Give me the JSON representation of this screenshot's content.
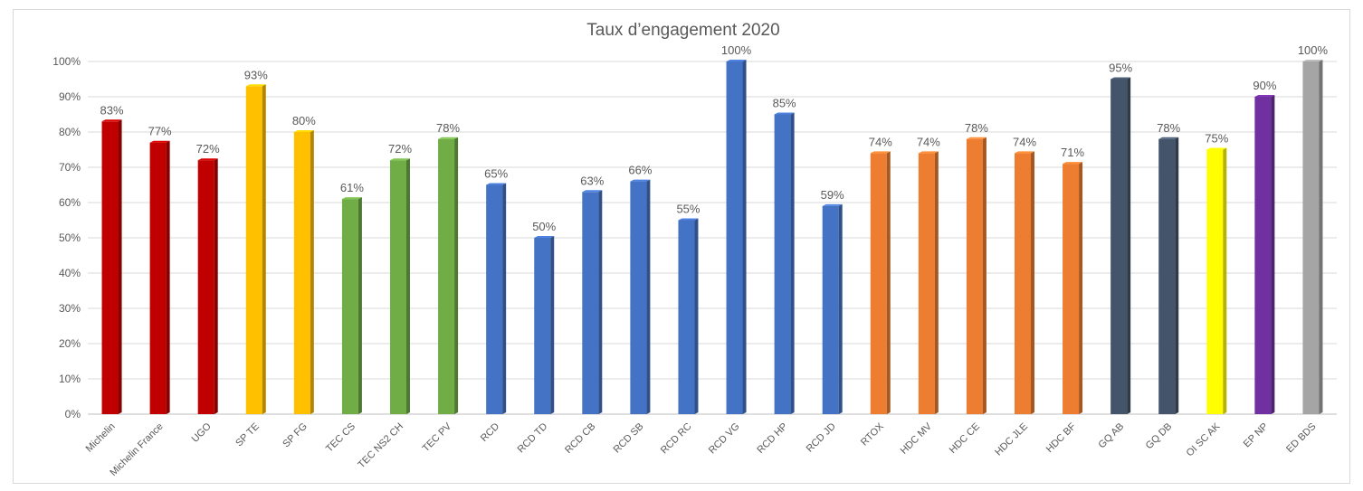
{
  "chart_data": {
    "type": "bar",
    "title": "Taux d’engagement  2020",
    "xlabel": "",
    "ylabel": "",
    "ylim": [
      0,
      100
    ],
    "yticks": [
      "0%",
      "10%",
      "20%",
      "30%",
      "40%",
      "50%",
      "60%",
      "70%",
      "80%",
      "90%",
      "100%"
    ],
    "grid": true,
    "legend": "none",
    "categories": [
      "Michelin",
      "Michelin France",
      "UGO",
      "SP TE",
      "SP FG",
      "TEC CS",
      "TEC NS2 CH",
      "TEC PV",
      "RCD",
      "RCD TD",
      "RCD CB",
      "RCD SB",
      "RCD RC",
      "RCD VG",
      "RCD HP",
      "RCD JD",
      "RTOX",
      "HDC MV",
      "HDC CE",
      "HDC JLE",
      "HDC BF",
      "GQ AB",
      "GQ DB",
      "OI SC AK",
      "EP NP",
      "ED BDS"
    ],
    "values": [
      83,
      77,
      72,
      93,
      80,
      61,
      72,
      78,
      65,
      50,
      63,
      66,
      55,
      100,
      85,
      59,
      74,
      74,
      78,
      74,
      71,
      95,
      78,
      75,
      90,
      100
    ],
    "labels": [
      "83%",
      "77%",
      "72%",
      "93%",
      "80%",
      "61%",
      "72%",
      "78%",
      "65%",
      "50%",
      "63%",
      "66%",
      "55%",
      "100%",
      "85%",
      "59%",
      "74%",
      "74%",
      "78%",
      "74%",
      "71%",
      "95%",
      "78%",
      "75%",
      "90%",
      "100%"
    ],
    "colors": [
      "#c00000",
      "#c00000",
      "#c00000",
      "#ffc000",
      "#ffc000",
      "#70ad47",
      "#70ad47",
      "#70ad47",
      "#4472c4",
      "#4472c4",
      "#4472c4",
      "#4472c4",
      "#4472c4",
      "#4472c4",
      "#4472c4",
      "#4472c4",
      "#ed7d31",
      "#ed7d31",
      "#ed7d31",
      "#ed7d31",
      "#ed7d31",
      "#44546a",
      "#44546a",
      "#ffff00",
      "#7030a0",
      "#a5a5a5"
    ]
  }
}
